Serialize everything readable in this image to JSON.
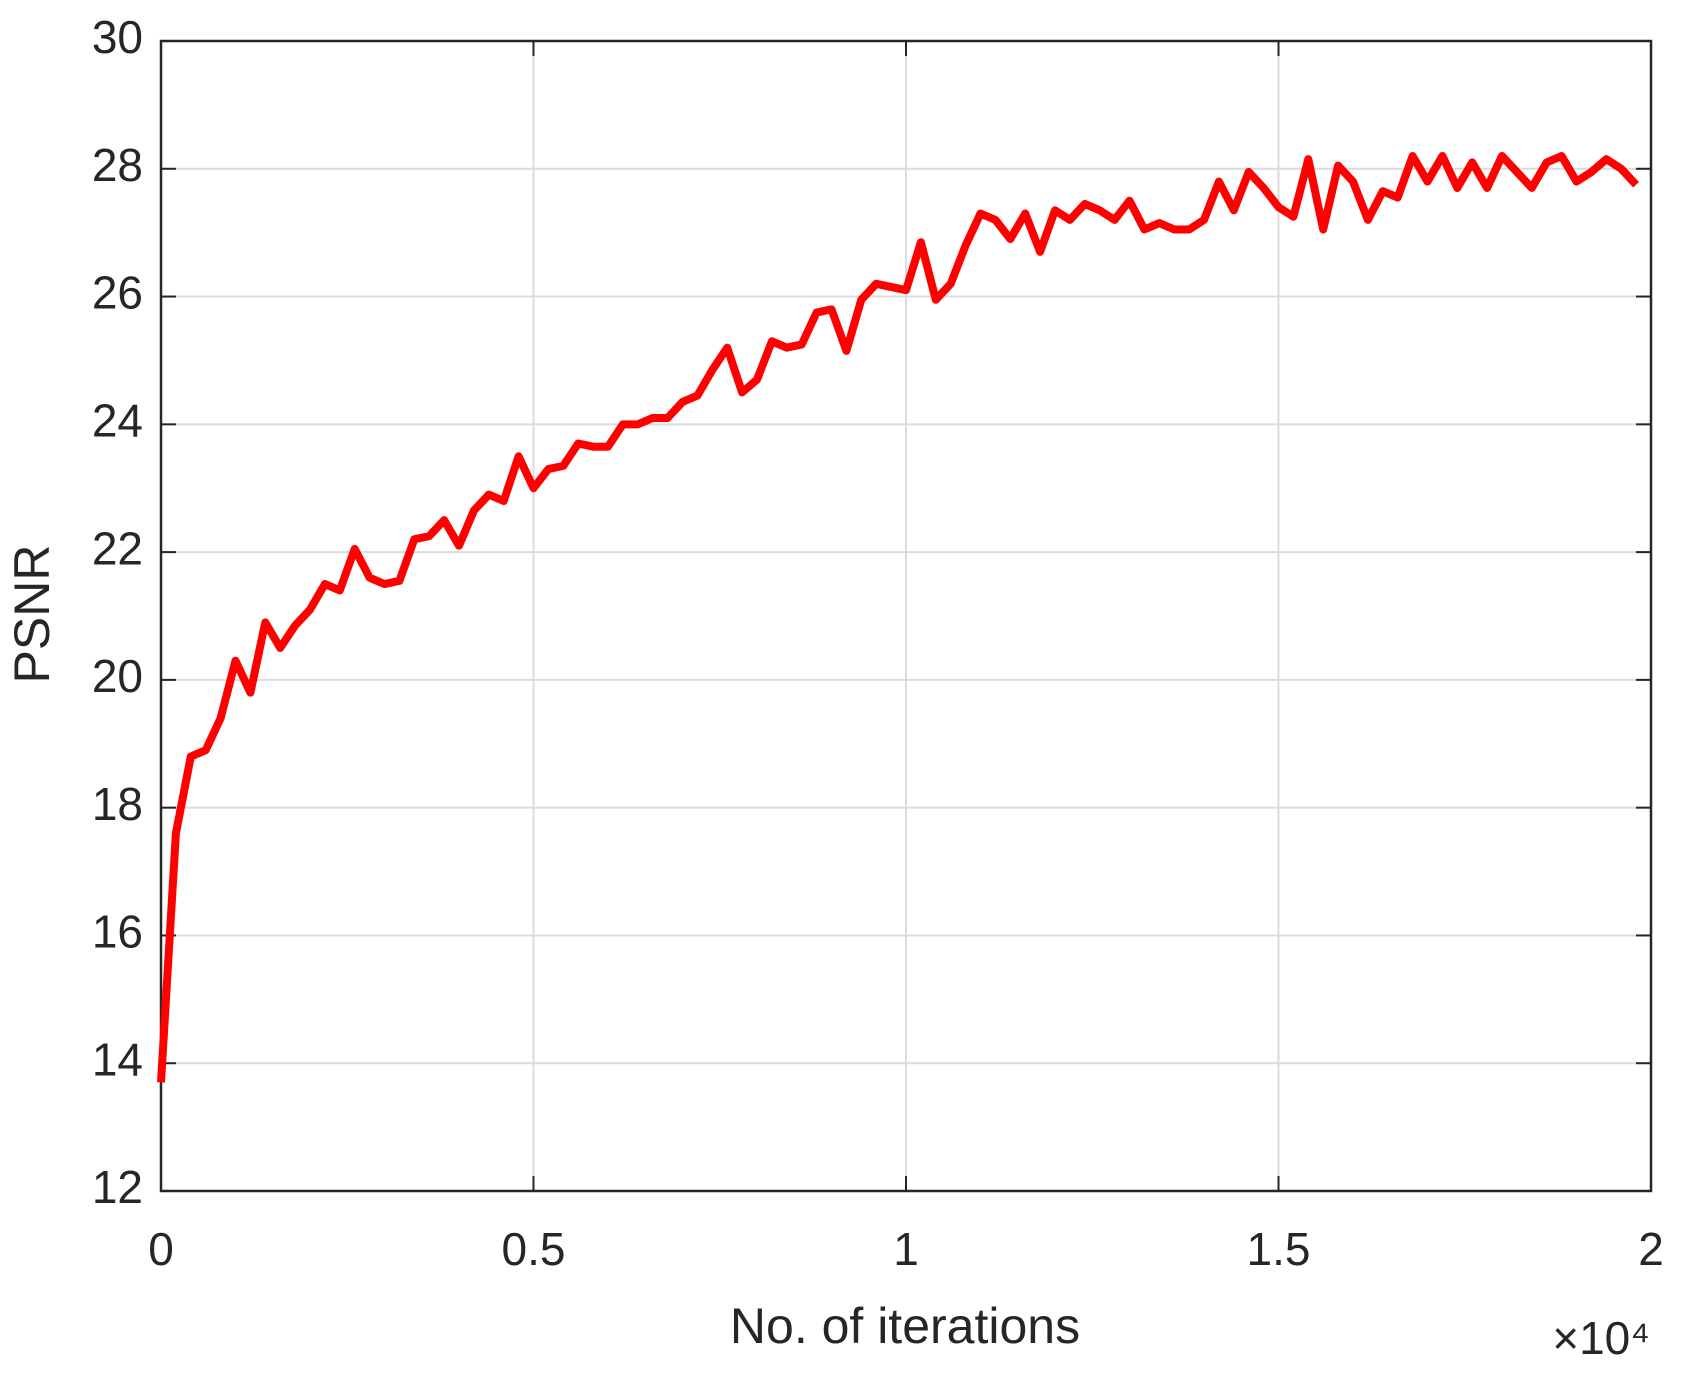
{
  "chart_data": {
    "type": "line",
    "x_label": "No. of iterations",
    "y_label": "PSNR",
    "x_multiplier": "×10⁴",
    "xlim": [
      0,
      2
    ],
    "xticks": [
      0,
      0.5,
      1,
      1.5,
      2
    ],
    "ylim": [
      12,
      30
    ],
    "yticks": [
      12,
      14,
      16,
      18,
      20,
      22,
      24,
      26,
      28,
      30
    ],
    "grid": true,
    "x": [
      0,
      0.02,
      0.04,
      0.06,
      0.08,
      0.1,
      0.12,
      0.14,
      0.16,
      0.18,
      0.2,
      0.22,
      0.24,
      0.26,
      0.28,
      0.3,
      0.32,
      0.34,
      0.36,
      0.38,
      0.4,
      0.42,
      0.44,
      0.46,
      0.48,
      0.5,
      0.52,
      0.54,
      0.56,
      0.58,
      0.6,
      0.62,
      0.64,
      0.66,
      0.68,
      0.7,
      0.72,
      0.74,
      0.76,
      0.78,
      0.8,
      0.82,
      0.84,
      0.86,
      0.88,
      0.9,
      0.92,
      0.94,
      0.96,
      0.98,
      1,
      1.02,
      1.04,
      1.06,
      1.08,
      1.1,
      1.12,
      1.14,
      1.16,
      1.18,
      1.2,
      1.22,
      1.24,
      1.26,
      1.28,
      1.3,
      1.32,
      1.34,
      1.36,
      1.38,
      1.4,
      1.42,
      1.44,
      1.46,
      1.48,
      1.5,
      1.52,
      1.54,
      1.56,
      1.58,
      1.6,
      1.62,
      1.64,
      1.66,
      1.68,
      1.7,
      1.72,
      1.74,
      1.76,
      1.78,
      1.8,
      1.82,
      1.84,
      1.86,
      1.88,
      1.9,
      1.92,
      1.94,
      1.96,
      1.98
    ],
    "series": [
      {
        "color": "#ff0000",
        "values": [
          13.7,
          17.6,
          18.8,
          18.9,
          19.4,
          20.3,
          19.8,
          20.9,
          20.5,
          20.85,
          21.1,
          21.5,
          21.4,
          22.05,
          21.6,
          21.5,
          21.55,
          22.2,
          22.25,
          22.5,
          22.1,
          22.65,
          22.9,
          22.8,
          23.5,
          23.0,
          23.3,
          23.35,
          23.7,
          23.65,
          23.65,
          24.0,
          24.0,
          24.1,
          24.1,
          24.35,
          24.45,
          24.85,
          25.2,
          24.5,
          24.7,
          25.3,
          25.2,
          25.25,
          25.75,
          25.8,
          25.15,
          25.95,
          26.2,
          26.15,
          26.1,
          26.85,
          25.95,
          26.2,
          26.8,
          27.3,
          27.2,
          26.9,
          27.3,
          26.7,
          27.35,
          27.2,
          27.45,
          27.35,
          27.2,
          27.5,
          27.05,
          27.15,
          27.05,
          27.05,
          27.2,
          27.8,
          27.35,
          27.95,
          27.7,
          27.4,
          27.25,
          28.15,
          27.05,
          28.05,
          27.8,
          27.2,
          27.65,
          27.55,
          28.2,
          27.8,
          28.2,
          27.7,
          28.1,
          27.7,
          28.2,
          27.95,
          27.7,
          28.1,
          28.2,
          27.8,
          27.95,
          28.15,
          28.0,
          27.75
        ]
      }
    ]
  }
}
